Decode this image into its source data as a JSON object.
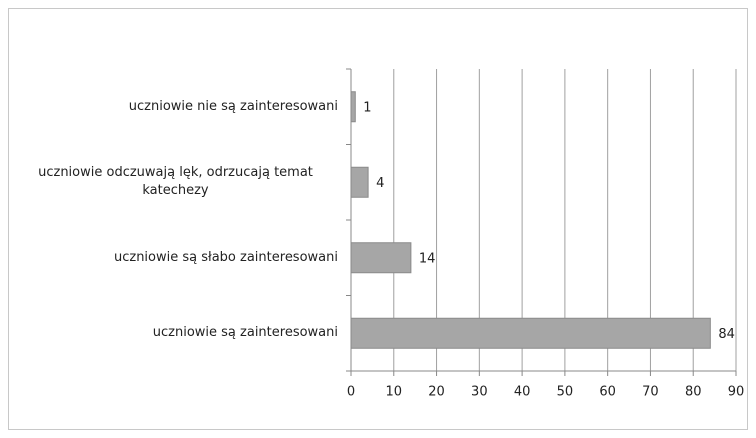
{
  "chart_data": {
    "type": "bar",
    "orientation": "horizontal",
    "categories": [
      "uczniowie nie są zainteresowani",
      "uczniowie odczuwają lęk, odrzucają temat katechezy",
      "uczniowie są słabo zainteresowani",
      "uczniowie są zainteresowani"
    ],
    "values": [
      1,
      4,
      14,
      84
    ],
    "color": "#a6a6a6",
    "xlim": [
      0,
      90
    ],
    "xticks": [
      0,
      10,
      20,
      30,
      40,
      50,
      60,
      70,
      80,
      90
    ],
    "grid": true
  }
}
